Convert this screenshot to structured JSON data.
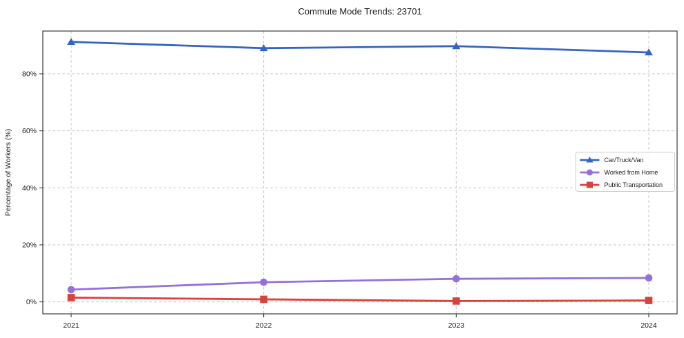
{
  "figure": {
    "background": "#ffffff",
    "border_color": "#2a2a2a",
    "grid_color": "#c9c9c9"
  },
  "chart_data": {
    "type": "line",
    "title": "Commute Mode Trends: 23701",
    "xlabel": "",
    "ylabel": "Percentage of Workers (%)",
    "x": [
      2021,
      2022,
      2023,
      2024
    ],
    "x_tick_labels": [
      "2021",
      "2022",
      "2023",
      "2024"
    ],
    "y_ticks": [
      0,
      20,
      40,
      60,
      80
    ],
    "y_tick_labels": [
      "0%",
      "20%",
      "40%",
      "60%",
      "80%"
    ],
    "ylim": [
      -4.2,
      95.0
    ],
    "grid": true,
    "grid_style": "dashed",
    "legend_position": "center-right",
    "series": [
      {
        "name": "Car/Truck/Van",
        "marker": "triangle",
        "color": "#3565c4",
        "values": [
          91.2,
          89.0,
          89.7,
          87.5
        ]
      },
      {
        "name": "Worked from Home",
        "marker": "circle",
        "color": "#9370db",
        "values": [
          4.3,
          6.9,
          8.1,
          8.4
        ]
      },
      {
        "name": "Public Transportation",
        "marker": "square",
        "color": "#d9413d",
        "values": [
          1.5,
          0.9,
          0.3,
          0.5
        ]
      }
    ]
  }
}
